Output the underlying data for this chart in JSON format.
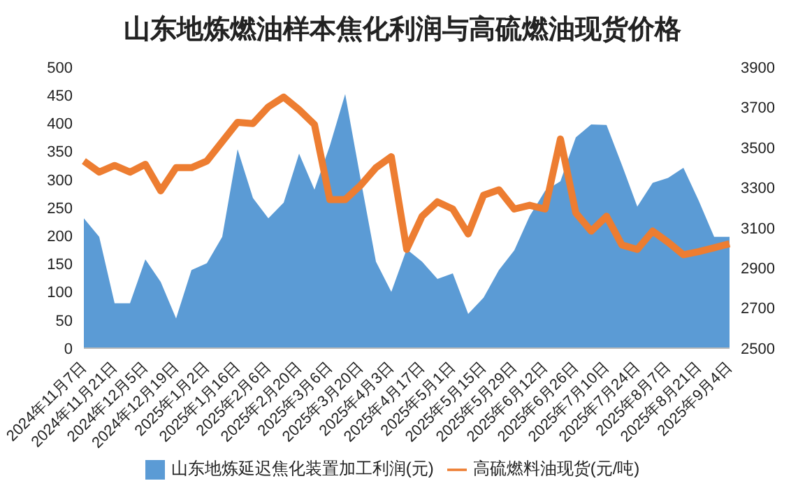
{
  "chart_data": {
    "type": "area",
    "title": "山东地炼燃油样本焦化利润与高硫燃油现货价格",
    "categories": [
      "2024年11月7日",
      null,
      "2024年11月21日",
      null,
      "2024年12月5日",
      null,
      "2024年12月19日",
      null,
      "2025年1月2日",
      null,
      "2025年1月16日",
      null,
      "2025年2月6日",
      null,
      "2025年2月20日",
      null,
      "2025年3月6日",
      null,
      "2025年3月20日",
      null,
      "2025年4月3日",
      null,
      "2025年4月17日",
      null,
      "2025年5月1日",
      null,
      "2025年5月15日",
      null,
      "2025年5月29日",
      null,
      "2025年6月12日",
      null,
      "2025年6月26日",
      null,
      "2025年7月10日",
      null,
      "2025年7月24日",
      null,
      "2025年8月7日",
      null,
      "2025年8月21日",
      null,
      "2025年9月4日"
    ],
    "series": [
      {
        "name": "山东地炼延迟焦化装置加工利润(元)",
        "color": "#5b9bd5",
        "values": [
          231,
          198,
          80,
          80,
          158,
          118,
          53,
          139,
          151,
          198,
          354,
          267,
          231,
          259,
          346,
          282,
          360,
          452,
          301,
          154,
          100,
          176,
          154,
          123,
          133,
          61,
          90,
          139,
          174,
          235,
          280,
          297,
          375,
          398,
          397,
          326,
          252,
          294,
          303,
          321,
          262,
          198,
          198
        ]
      },
      {
        "name": "高硫燃料油现货(元/吨)",
        "type": "line",
        "axis": "y2",
        "color": "#ed7d31",
        "values": [
          3432,
          3377,
          3410,
          3377,
          3416,
          3284,
          3399,
          3399,
          3432,
          3529,
          3625,
          3619,
          3702,
          3751,
          3688,
          3614,
          3240,
          3240,
          3311,
          3399,
          3454,
          2992,
          3157,
          3229,
          3193,
          3069,
          3262,
          3289,
          3193,
          3212,
          3193,
          3542,
          3174,
          3083,
          3157,
          3014,
          2992,
          3083,
          3028,
          2965,
          2981,
          3000,
          3020
        ]
      }
    ],
    "ylim": [
      0,
      500
    ],
    "yticks": [
      0,
      50,
      100,
      150,
      200,
      250,
      300,
      350,
      400,
      450,
      500
    ],
    "y2lim": [
      2500,
      3900
    ],
    "y2ticks": [
      2500,
      2700,
      2900,
      3100,
      3300,
      3500,
      3700,
      3900
    ],
    "legend": "bottom",
    "grid": false,
    "marker": "none"
  }
}
